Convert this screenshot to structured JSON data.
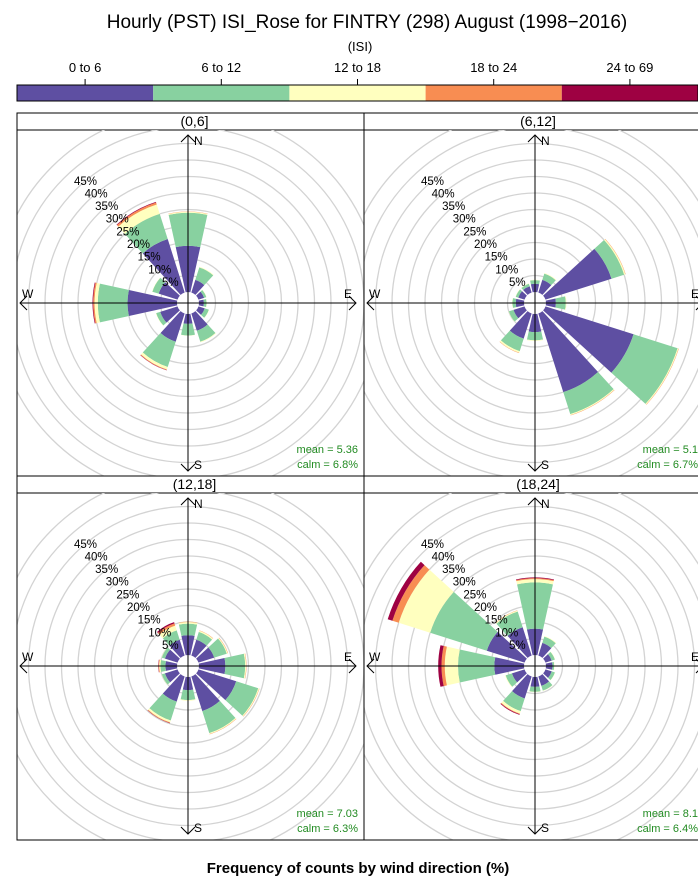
{
  "header": {
    "title": "Hourly (PST) ISI_Rose for FINTRY (298) August (1998−2016)",
    "scale_label": "(ISI)",
    "footer": "Frequency of counts by wind direction (%)"
  },
  "colors": {
    "bins": [
      "#5e4fa2",
      "#88d1a0",
      "#ffffbf",
      "#f88d52",
      "#9e0142"
    ],
    "stat_text": "#228b22",
    "grid": "#d3d3d3"
  },
  "chart_data": {
    "type": "wind-rose",
    "bins": [
      "0 to 6",
      "6 to 12",
      "12 to 18",
      "18 to 24",
      "24 to 69"
    ],
    "rings": [
      "0%",
      "5%",
      "10%",
      "15%",
      "20%",
      "25%",
      "30%",
      "35%",
      "40%",
      "45%"
    ],
    "ring_step": 5,
    "ring_max": 50,
    "directions": [
      "N",
      "E",
      "S",
      "W"
    ],
    "panels": [
      {
        "label": "(0,6]",
        "mean": "mean = 5.36",
        "calm": "calm = 6.8%",
        "sectors": [
          {
            "dir": 0,
            "v": [
              14,
              24,
              24.3,
              24.4,
              24.4
            ]
          },
          {
            "dir": 30,
            "v": [
              4,
              8,
              8.2,
              8.2,
              8.2
            ]
          },
          {
            "dir": 60,
            "v": [
              1.8,
              2.5,
              2.6,
              2.6,
              2.6
            ]
          },
          {
            "dir": 90,
            "v": [
              1.5,
              2.3,
              2.4,
              2.4,
              2.4
            ]
          },
          {
            "dir": 120,
            "v": [
              2,
              3.3,
              3.4,
              3.4,
              3.4
            ]
          },
          {
            "dir": 150,
            "v": [
              5.5,
              9,
              9.2,
              9.2,
              9.2
            ]
          },
          {
            "dir": 180,
            "v": [
              3,
              6.5,
              6.6,
              6.6,
              6.6
            ]
          },
          {
            "dir": 210,
            "v": [
              9,
              17,
              17.8,
              18,
              18.1
            ]
          },
          {
            "dir": 240,
            "v": [
              5.5,
              6.8,
              6.9,
              6.9,
              6.9
            ]
          },
          {
            "dir": 270,
            "v": [
              15,
              24,
              25,
              25.4,
              25.6
            ]
          },
          {
            "dir": 300,
            "v": [
              6,
              8,
              8.1,
              8.1,
              8.1
            ]
          },
          {
            "dir": 330,
            "v": [
              17,
              25,
              28,
              28.6,
              28.8
            ]
          }
        ]
      },
      {
        "label": "(6,12]",
        "mean": "mean = 5.1",
        "calm": "calm = 6.7%",
        "sectors": [
          {
            "dir": 0,
            "v": [
              2.5,
              3.6,
              3.7,
              3.7,
              3.7
            ]
          },
          {
            "dir": 30,
            "v": [
              4,
              6,
              6.2,
              6.2,
              6.2
            ]
          },
          {
            "dir": 60,
            "v": [
              21,
              25,
              25.4,
              25.5,
              25.5
            ]
          },
          {
            "dir": 90,
            "v": [
              3,
              6,
              6.2,
              6.2,
              6.2
            ]
          },
          {
            "dir": 120,
            "v": [
              28,
              42,
              42.3,
              42.4,
              42.4
            ]
          },
          {
            "dir": 150,
            "v": [
              25,
              32,
              32.3,
              32.4,
              32.4
            ]
          },
          {
            "dir": 180,
            "v": [
              5.5,
              8,
              8.2,
              8.2,
              8.2
            ]
          },
          {
            "dir": 210,
            "v": [
              8,
              12,
              12.5,
              12.6,
              12.6
            ]
          },
          {
            "dir": 240,
            "v": [
              3.5,
              5,
              5.1,
              5.1,
              5.1
            ]
          },
          {
            "dir": 270,
            "v": [
              2.5,
              3.5,
              3.6,
              3.6,
              3.6
            ]
          },
          {
            "dir": 300,
            "v": [
              2,
              2.8,
              2.9,
              2.9,
              2.9
            ]
          },
          {
            "dir": 330,
            "v": [
              2,
              2.8,
              2.9,
              2.9,
              2.9
            ]
          }
        ]
      },
      {
        "label": "(12,18]",
        "mean": "mean = 7.03",
        "calm": "calm = 6.3%",
        "sectors": [
          {
            "dir": 0,
            "v": [
              6,
              9.5,
              10,
              10.1,
              10.1
            ]
          },
          {
            "dir": 30,
            "v": [
              5,
              7.5,
              7.9,
              8,
              8
            ]
          },
          {
            "dir": 60,
            "v": [
              5,
              9,
              9.3,
              9.4,
              9.4
            ]
          },
          {
            "dir": 90,
            "v": [
              8,
              14,
              14.3,
              14.4,
              14.4
            ]
          },
          {
            "dir": 120,
            "v": [
              12,
              19,
              19.3,
              19.4,
              19.4
            ]
          },
          {
            "dir": 150,
            "v": [
              11,
              18,
              18.3,
              18.4,
              18.4
            ]
          },
          {
            "dir": 180,
            "v": [
              4,
              7,
              7.2,
              7.2,
              7.2
            ]
          },
          {
            "dir": 210,
            "v": [
              8,
              14,
              14.6,
              14.8,
              14.9
            ]
          },
          {
            "dir": 240,
            "v": [
              4,
              5,
              5.1,
              5.1,
              5.1
            ]
          },
          {
            "dir": 270,
            "v": [
              3.5,
              5,
              5.4,
              5.6,
              5.7
            ]
          },
          {
            "dir": 300,
            "v": [
              4,
              5,
              5.1,
              5.1,
              5.1
            ]
          },
          {
            "dir": 330,
            "v": [
              5,
              8,
              9.5,
              10.2,
              10.6
            ]
          }
        ]
      },
      {
        "label": "(18,24]",
        "mean": "mean = 8.1",
        "calm": "calm = 6.4%",
        "sectors": [
          {
            "dir": 0,
            "v": [
              8,
              22,
              23,
              23.3,
              23.5
            ]
          },
          {
            "dir": 30,
            "v": [
              4,
              6,
              6.2,
              6.2,
              6.2
            ]
          },
          {
            "dir": 60,
            "v": [
              2,
              3,
              3.1,
              3.1,
              3.1
            ]
          },
          {
            "dir": 90,
            "v": [
              2,
              2.5,
              2.6,
              2.6,
              2.6
            ]
          },
          {
            "dir": 120,
            "v": [
              2,
              3,
              3.1,
              3.1,
              3.1
            ]
          },
          {
            "dir": 150,
            "v": [
              3,
              4.5,
              4.6,
              4.6,
              4.6
            ]
          },
          {
            "dir": 180,
            "v": [
              3,
              4.5,
              4.6,
              4.6,
              4.6
            ]
          },
          {
            "dir": 210,
            "v": [
              7,
              11,
              11.8,
              12,
              12.2
            ]
          },
          {
            "dir": 240,
            "v": [
              4,
              6,
              6.2,
              6.2,
              6.2
            ]
          },
          {
            "dir": 270,
            "v": [
              9,
              20,
              24,
              25,
              26
            ]
          },
          {
            "dir": 300,
            "v": [
              12,
              30,
              40,
              42,
              43.5
            ]
          },
          {
            "dir": 330,
            "v": [
              9,
              14,
              14.3,
              14.4,
              14.4
            ]
          }
        ]
      }
    ]
  }
}
